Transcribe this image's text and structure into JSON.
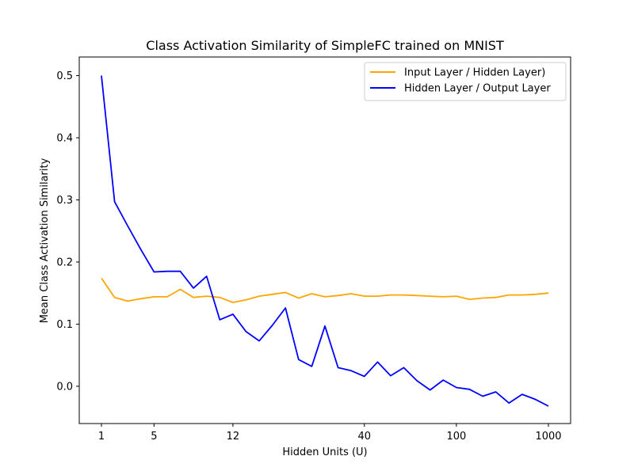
{
  "chart_data": {
    "type": "line",
    "title": "Class Activation Similarity of SimpleFC trained on MNIST",
    "xlabel": "Hidden Units (U)",
    "ylabel": "Mean Class Activation Similarity",
    "x_ticks": [
      "1",
      "5",
      "12",
      "40",
      "100",
      "1000"
    ],
    "y_ticks": [
      "0.0",
      "0.1",
      "0.2",
      "0.3",
      "0.4",
      "0.5"
    ],
    "ylim": [
      -0.06,
      0.53
    ],
    "grid": false,
    "legend_position": "top-right",
    "series": [
      {
        "name": "Input Layer / Hidden Layer)",
        "color": "#ffa500",
        "values": [
          0.174,
          0.143,
          0.137,
          0.141,
          0.144,
          0.144,
          0.156,
          0.143,
          0.145,
          0.143,
          0.135,
          0.139,
          0.145,
          0.148,
          0.151,
          0.142,
          0.149,
          0.144,
          0.146,
          0.149,
          0.145,
          0.145,
          0.147,
          0.147,
          0.146,
          0.145,
          0.144,
          0.145,
          0.14,
          0.142,
          0.143,
          0.147,
          0.147,
          0.148,
          0.15
        ]
      },
      {
        "name": "Hidden Layer / Output Layer",
        "color": "#0000ff",
        "values": [
          0.5,
          0.297,
          0.258,
          0.22,
          0.184,
          0.185,
          0.185,
          0.158,
          0.177,
          0.107,
          0.116,
          0.088,
          0.073,
          0.098,
          0.126,
          0.043,
          0.032,
          0.097,
          0.03,
          0.025,
          0.016,
          0.039,
          0.017,
          0.03,
          0.009,
          -0.006,
          0.01,
          -0.002,
          -0.005,
          -0.016,
          -0.009,
          -0.027,
          -0.013,
          -0.021,
          -0.032
        ]
      }
    ]
  }
}
